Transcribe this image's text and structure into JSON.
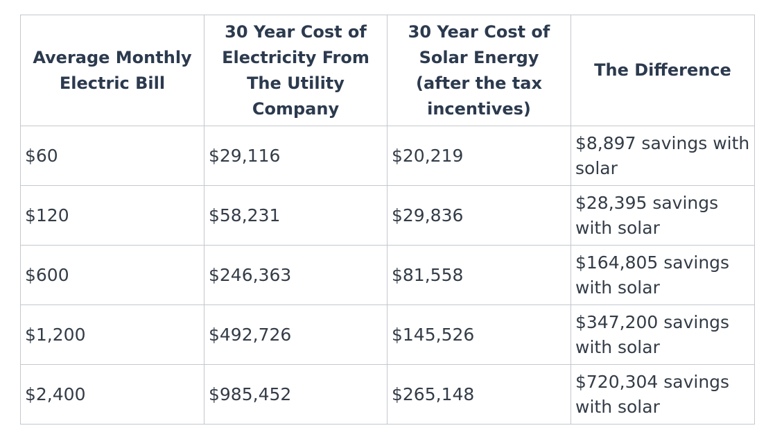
{
  "table": {
    "headers": [
      "Average Monthly Electric Bill",
      "30 Year Cost of Electricity From The Utility Company",
      "30 Year Cost of Solar Energy (after the tax incentives)",
      "The Difference"
    ],
    "rows": [
      [
        "$60",
        "$29,116",
        "$20,219",
        "$8,897 savings with solar"
      ],
      [
        "$120",
        "$58,231",
        "$29,836",
        "$28,395 savings with solar"
      ],
      [
        "$600",
        "$246,363",
        "$81,558",
        "$164,805 savings with solar"
      ],
      [
        "$1,200",
        "$492,726",
        "$145,526",
        "$347,200 savings with solar"
      ],
      [
        "$2,400",
        "$985,452",
        "$265,148",
        "$720,304 savings with solar"
      ]
    ]
  }
}
